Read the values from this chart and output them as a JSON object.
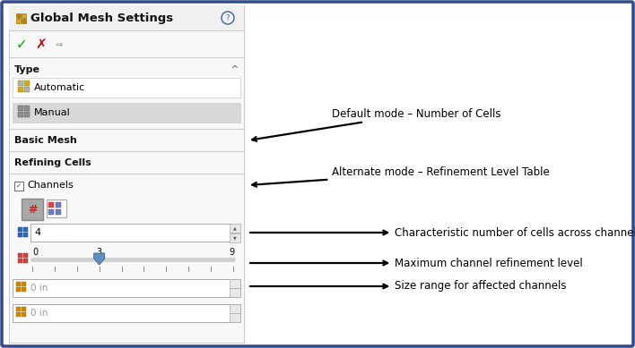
{
  "fig_width": 7.08,
  "fig_height": 3.89,
  "dpi": 100,
  "bg_color": "#ffffff",
  "border_color": "#2e4a8c",
  "border_lw": 2.5,
  "title_text": "Global Mesh Settings",
  "title_fontsize": 9.5,
  "automatic_label": "Automatic",
  "manual_label": "Manual",
  "basic_mesh_text": "Basic Mesh",
  "refining_cells_text": "Refining Cells",
  "channels_label": "Channels",
  "value_4": "4",
  "slider_min": "0",
  "slider_mid": "3",
  "slider_max": "9",
  "size_label": "0 in",
  "annotation1_text": "Default mode – Number of Cells",
  "annotation2_text": "Alternate mode – Refinement Level Table",
  "annotation3_text": "Characteristic number of cells across channel",
  "annotation4_text": "Maximum channel refinement level",
  "annotation5_text": "Size range for affected channels",
  "annotation_fontsize": 8.5,
  "arrow_color": "#000000",
  "divider_color": "#cccccc",
  "text_color": "#000000",
  "light_gray": "#e8e8e8",
  "slider_color": "#d0d0d0",
  "slider_thumb_color": "#5a8fc0"
}
